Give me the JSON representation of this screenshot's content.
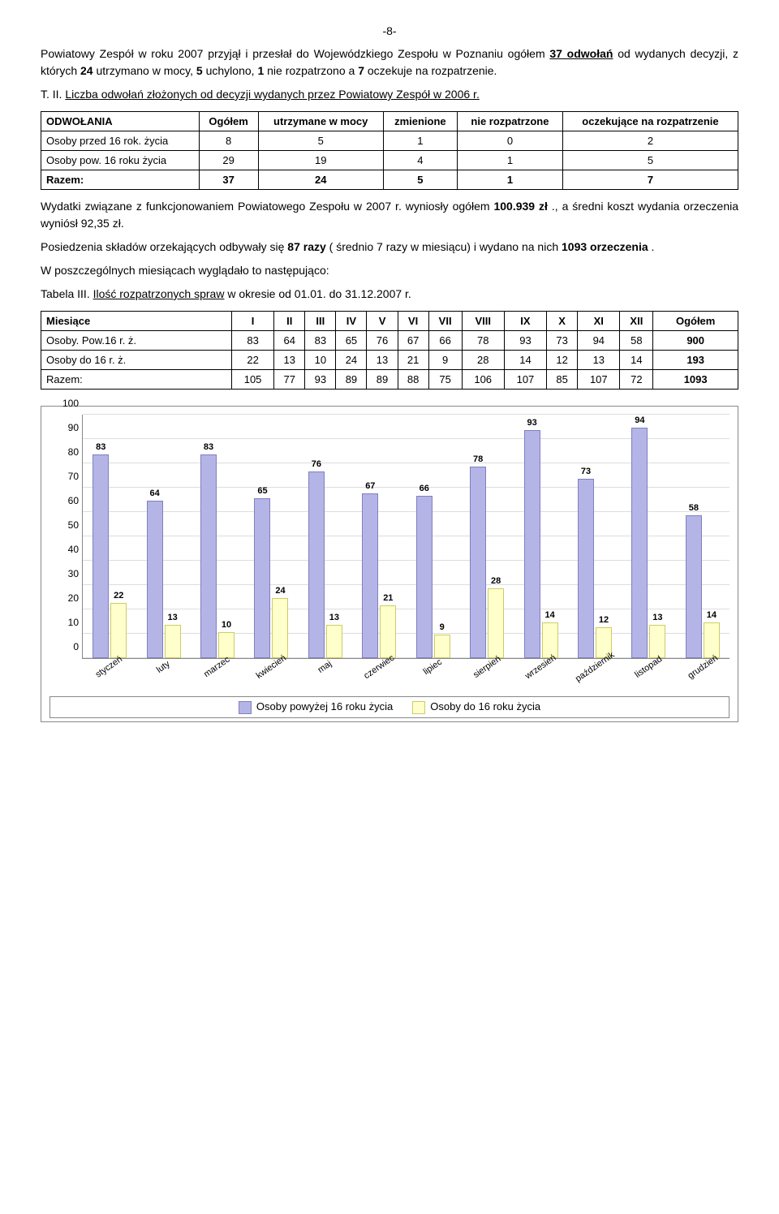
{
  "page_number": "-8-",
  "intro": {
    "p1_a": "Powiatowy Zespół w roku 2007 przyjął i przesłał do Wojewódzkiego Zespołu w Poznaniu ogółem ",
    "p1_b": "37 odwołań",
    "p1_c": " od wydanych decyzji, z których ",
    "p1_d": "24",
    "p1_e": " utrzymano w mocy, ",
    "p1_f": "5",
    "p1_g": " uchylono, ",
    "p1_h": "1",
    "p1_i": " nie rozpatrzono a ",
    "p1_j": "7",
    "p1_k": " oczekuje na rozpatrzenie."
  },
  "table2": {
    "caption_a": "T. II. ",
    "caption_b": "Liczba odwołań złożonych od decyzji wydanych przez Powiatowy Zespół w 2006 r.",
    "headers": [
      "ODWOŁANIA",
      "Ogółem",
      "utrzymane w mocy",
      "zmienione",
      "nie rozpatrzone",
      "oczekujące na rozpatrzenie"
    ],
    "rows": [
      {
        "label": "Osoby przed 16 rok. życia",
        "vals": [
          "8",
          "5",
          "1",
          "0",
          "2"
        ]
      },
      {
        "label": "Osoby pow. 16 roku życia",
        "vals": [
          "29",
          "19",
          "4",
          "1",
          "5"
        ]
      },
      {
        "label": "Razem:",
        "vals": [
          "37",
          "24",
          "5",
          "1",
          "7"
        ],
        "bold": true
      }
    ]
  },
  "mid": {
    "p1_a": "Wydatki związane z funkcjonowaniem Powiatowego  Zespołu w 2007 r. wyniosły ogółem ",
    "p1_b": "100.939 zł",
    "p1_c": "., a średni koszt wydania orzeczenia wyniósł 92,35 zł.",
    "p2_a": "Posiedzenia składów orzekających odbywały się ",
    "p2_b": "87 razy",
    "p2_c": " ( średnio 7 razy w miesiącu) i wydano na nich ",
    "p2_d": "1093 orzeczenia",
    "p2_e": ".",
    "p3": "W poszczególnych miesiącach wyglądało to następująco:",
    "p4_a": "Tabela III. ",
    "p4_b": "Ilość rozpatrzonych spraw",
    "p4_c": " w okresie od 01.01. do 31.12.2007 r."
  },
  "table3": {
    "headers": [
      "Miesiące",
      "I",
      "II",
      "III",
      "IV",
      "V",
      "VI",
      "VII",
      "VIII",
      "IX",
      "X",
      "XI",
      "XII",
      "Ogółem"
    ],
    "rows": [
      {
        "label": "Osoby. Pow.16 r. ż.",
        "vals": [
          "83",
          "64",
          "83",
          "65",
          "76",
          "67",
          "66",
          "78",
          "93",
          "73",
          "94",
          "58",
          "900"
        ]
      },
      {
        "label": "Osoby do 16 r. ż.",
        "vals": [
          "22",
          "13",
          "10",
          "24",
          "13",
          "21",
          "9",
          "28",
          "14",
          "12",
          "13",
          "14",
          "193"
        ]
      },
      {
        "label": "Razem:",
        "vals": [
          "105",
          "77",
          "93",
          "89",
          "89",
          "88",
          "75",
          "106",
          "107",
          "85",
          "107",
          "72",
          "1093"
        ]
      }
    ]
  },
  "chart": {
    "type": "bar",
    "ylim": [
      0,
      100
    ],
    "ytick_step": 10,
    "categories": [
      "styczeń",
      "luty",
      "marzec",
      "kwiecień",
      "maj",
      "czerwiec",
      "lipiec",
      "sierpień",
      "wrzesień",
      "październik",
      "listopad",
      "grudzień"
    ],
    "series": [
      {
        "name": "Osoby powyżej 16 roku życia",
        "color": "#b4b4e6",
        "border": "#8080c0",
        "values": [
          83,
          64,
          83,
          65,
          76,
          67,
          66,
          78,
          93,
          73,
          94,
          58
        ]
      },
      {
        "name": "Osoby do 16 roku życia",
        "color": "#ffffcc",
        "border": "#cccc66",
        "values": [
          22,
          13,
          10,
          24,
          13,
          21,
          9,
          28,
          14,
          12,
          13,
          14
        ]
      }
    ],
    "label_fontsize": 11,
    "background_color": "#ffffff",
    "grid_color": "#dddddd"
  }
}
